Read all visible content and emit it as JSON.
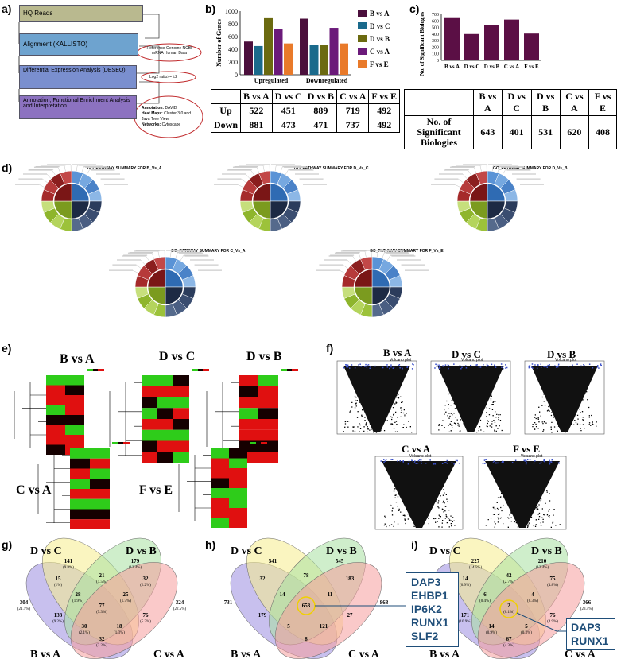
{
  "panels": {
    "a": "a)",
    "b": "b)",
    "c": "c)",
    "d": "d)",
    "e": "e)",
    "f": "f)",
    "g": "g)",
    "h": "h)",
    "i": "i)"
  },
  "workflow": {
    "steps": [
      "HQ Reads",
      "Alignment (KALLISTO)",
      "Differential Expression Analysis (DESEQ)",
      "Annotation, Functional Enrichment Analysis and Interpretation"
    ],
    "note_reference": "Reference Genome NCBI mRNA Human Data",
    "note_log2": "Log2 ratio>= ±2",
    "note_annot_label": "Annotation:",
    "note_annot_value": "DAVID",
    "note_heat_label": "Heat Maps:",
    "note_heat_value": "Cluster 3.0 and Java Tree View",
    "note_net_label": "Networks:",
    "note_net_value": "Cytoscape"
  },
  "colors": {
    "BvsA": "#4b0f3c",
    "DvsC": "#1a6a8c",
    "DvsB": "#6b6a10",
    "CvsA": "#6b1a7a",
    "FvsE": "#e97a2a",
    "bio": "#5b0f45"
  },
  "chart_data": [
    {
      "type": "bar",
      "ylabel": "Number of Genes",
      "ylim": [
        0,
        1000
      ],
      "yticks": [
        0,
        200,
        400,
        600,
        800,
        1000
      ],
      "categories": [
        "Upregulated",
        "Downregulated"
      ],
      "series": [
        {
          "name": "B vs A",
          "values": [
            522,
            881
          ]
        },
        {
          "name": "D vs C",
          "values": [
            451,
            473
          ]
        },
        {
          "name": "D vs B",
          "values": [
            889,
            471
          ]
        },
        {
          "name": "C vs A",
          "values": [
            719,
            737
          ]
        },
        {
          "name": "F vs E",
          "values": [
            492,
            492
          ]
        }
      ]
    },
    {
      "type": "bar",
      "ylabel": "No. of Significant Biologies",
      "ylim": [
        0,
        700
      ],
      "yticks": [
        0,
        100,
        200,
        300,
        400,
        500,
        600,
        700
      ],
      "categories": [
        "B vs A",
        "D vs C",
        "D vs B",
        "C vs A",
        "F vs E"
      ],
      "values": [
        643,
        401,
        531,
        620,
        408
      ]
    }
  ],
  "table_b": {
    "headers": [
      "B vs A",
      "D vs C",
      "D vs B",
      "C vs A",
      "F vs E"
    ],
    "rows": [
      {
        "label": "Up",
        "values": [
          "522",
          "451",
          "889",
          "719",
          "492"
        ]
      },
      {
        "label": "Down",
        "values": [
          "881",
          "473",
          "471",
          "737",
          "492"
        ]
      }
    ]
  },
  "table_c": {
    "headers": [
      "B vs A",
      "D vs C",
      "D vs B",
      "C vs A",
      "F vs E"
    ],
    "row_label_lines": [
      "No. of",
      "Significant",
      "Biologies"
    ],
    "values": [
      "643",
      "401",
      "531",
      "620",
      "408"
    ]
  },
  "go_titles": [
    "GO_PATHWAY SUMMARY FOR B_Vs_A",
    "GO_PATHWAY SUMMARY FOR D_Vs_C",
    "GO_PATHWAY SUMMARY FOR D_Vs_B",
    "GO_PATHWAY SUMMARY FOR C_Vs_A",
    "GO_PATHWAY SUMMARY FOR F_Vs_E"
  ],
  "heatmaps": [
    "B vs A",
    "D vs C",
    "D vs B",
    "C vs A",
    "F vs E"
  ],
  "volcano": {
    "labels": [
      "B vs A",
      "D vs C",
      "D vs B",
      "C vs A",
      "F vs E"
    ],
    "subtitle": "Volcano plot"
  },
  "venn_sets": [
    "D vs C",
    "D vs B",
    "B vs A",
    "C vs A"
  ],
  "venn_g": {
    "regions": [
      {
        "n": "141",
        "p": "(9.8%)"
      },
      {
        "n": "179",
        "p": "(12.4%)"
      },
      {
        "n": "304",
        "p": "(21.1%)"
      },
      {
        "n": "324",
        "p": "(22.5%)"
      },
      {
        "n": "15",
        "p": "(1%)"
      },
      {
        "n": "21",
        "p": "(1.5%)"
      },
      {
        "n": "32",
        "p": "(2.2%)"
      },
      {
        "n": "28",
        "p": "(1.9%)"
      },
      {
        "n": "25",
        "p": "(1.7%)"
      },
      {
        "n": "77",
        "p": "(5.3%)"
      },
      {
        "n": "133",
        "p": "(9.2%)"
      },
      {
        "n": "76",
        "p": "(5.3%)"
      },
      {
        "n": "30",
        "p": "(2.1%)"
      },
      {
        "n": "18",
        "p": "(1.3%)"
      },
      {
        "n": "32",
        "p": "(2.2%)"
      }
    ]
  },
  "venn_h": {
    "regions": [
      "541",
      "545",
      "731",
      "868",
      "32",
      "78",
      "183",
      "14",
      "11",
      "653",
      "179",
      "27",
      "5",
      "121",
      "8"
    ],
    "genes": [
      "DAP3",
      "EHBP1",
      "IP6K2",
      "RUNX1",
      "SLF2"
    ]
  },
  "venn_i": {
    "regions": [
      {
        "n": "227",
        "p": "(14.5%)"
      },
      {
        "n": "210",
        "p": "(13.4%)"
      },
      {
        "n": "291",
        "p": "(18.6%)"
      },
      {
        "n": "366",
        "p": "(23.4%)"
      },
      {
        "n": "14",
        "p": "(0.9%)"
      },
      {
        "n": "42",
        "p": "(2.7%)"
      },
      {
        "n": "75",
        "p": "(4.8%)"
      },
      {
        "n": "6",
        "p": "(0.4%)"
      },
      {
        "n": "4",
        "p": "(0.3%)"
      },
      {
        "n": "2",
        "p": "(0.1%)"
      },
      {
        "n": "171",
        "p": "(10.9%)"
      },
      {
        "n": "76",
        "p": "(4.9%)"
      },
      {
        "n": "14",
        "p": "(0.9%)"
      },
      {
        "n": "5",
        "p": "(0.3%)"
      },
      {
        "n": "67",
        "p": "(4.3%)"
      }
    ],
    "genes": [
      "DAP3",
      "RUNX1"
    ]
  }
}
